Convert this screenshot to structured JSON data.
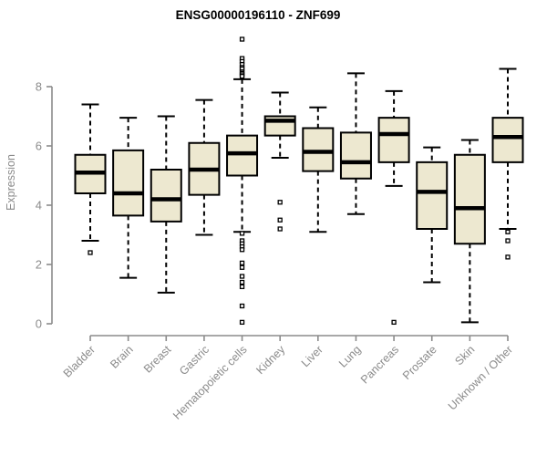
{
  "title": "ENSG00000196110 - ZNF699",
  "colors": {
    "background": "#ffffff",
    "box_fill": "#ede8d0",
    "box_stroke": "#000000",
    "median_stroke": "#000000",
    "whisker_stroke": "#000000",
    "outlier_stroke": "#000000",
    "outlier_fill": "#ffffff",
    "axis_line": "#8b8b8b",
    "axis_text": "#8b8b8b",
    "title_text": "#000000"
  },
  "chart_data": {
    "type": "boxplot",
    "title": "ENSG00000196110 - ZNF699",
    "xlabel": "",
    "ylabel": "Expression",
    "ylim": [
      0,
      9.7
    ],
    "yticks": [
      0,
      2,
      4,
      6,
      8
    ],
    "grid": false,
    "legend": "none",
    "categories": [
      "Bladder",
      "Brain",
      "Breast",
      "Gastric",
      "Hematopoietic cells",
      "Kidney",
      "Liver",
      "Lung",
      "Pancreas",
      "Prostate",
      "Skin",
      "Unknown / Other"
    ],
    "series": [
      {
        "name": "Bladder",
        "whisker_low": 2.8,
        "q1": 4.4,
        "median": 5.1,
        "q3": 5.7,
        "whisker_high": 7.4,
        "outliers": [
          2.4
        ]
      },
      {
        "name": "Brain",
        "whisker_low": 1.55,
        "q1": 3.65,
        "median": 4.4,
        "q3": 5.85,
        "whisker_high": 6.95,
        "outliers": []
      },
      {
        "name": "Breast",
        "whisker_low": 1.05,
        "q1": 3.45,
        "median": 4.2,
        "q3": 5.2,
        "whisker_high": 7.0,
        "outliers": []
      },
      {
        "name": "Gastric",
        "whisker_low": 3.0,
        "q1": 4.35,
        "median": 5.2,
        "q3": 6.1,
        "whisker_high": 7.55,
        "outliers": []
      },
      {
        "name": "Hematopoietic cells",
        "whisker_low": 3.1,
        "q1": 5.0,
        "median": 5.75,
        "q3": 6.35,
        "whisker_high": 8.25,
        "outliers": [
          9.6,
          8.95,
          8.85,
          8.75,
          8.65,
          8.6,
          8.5,
          8.45,
          8.4,
          8.35,
          3.05,
          2.8,
          2.7,
          2.6,
          2.5,
          2.05,
          1.9,
          1.6,
          1.4,
          1.25,
          0.6,
          0.05
        ]
      },
      {
        "name": "Kidney",
        "whisker_low": 5.6,
        "q1": 6.35,
        "median": 6.85,
        "q3": 7.0,
        "whisker_high": 7.8,
        "outliers": [
          4.1,
          3.5,
          3.2
        ]
      },
      {
        "name": "Liver",
        "whisker_low": 3.1,
        "q1": 5.15,
        "median": 5.8,
        "q3": 6.6,
        "whisker_high": 7.3,
        "outliers": []
      },
      {
        "name": "Lung",
        "whisker_low": 3.7,
        "q1": 4.9,
        "median": 5.45,
        "q3": 6.45,
        "whisker_high": 8.45,
        "outliers": []
      },
      {
        "name": "Pancreas",
        "whisker_low": 4.65,
        "q1": 5.45,
        "median": 6.4,
        "q3": 6.95,
        "whisker_high": 7.85,
        "outliers": [
          0.05
        ]
      },
      {
        "name": "Prostate",
        "whisker_low": 1.4,
        "q1": 3.2,
        "median": 4.45,
        "q3": 5.45,
        "whisker_high": 5.95,
        "outliers": []
      },
      {
        "name": "Skin",
        "whisker_low": 0.05,
        "q1": 2.7,
        "median": 3.9,
        "q3": 5.7,
        "whisker_high": 6.2,
        "outliers": []
      },
      {
        "name": "Unknown / Other",
        "whisker_low": 3.2,
        "q1": 5.45,
        "median": 6.3,
        "q3": 6.95,
        "whisker_high": 8.6,
        "outliers": [
          3.1,
          2.8,
          2.25
        ]
      }
    ]
  }
}
